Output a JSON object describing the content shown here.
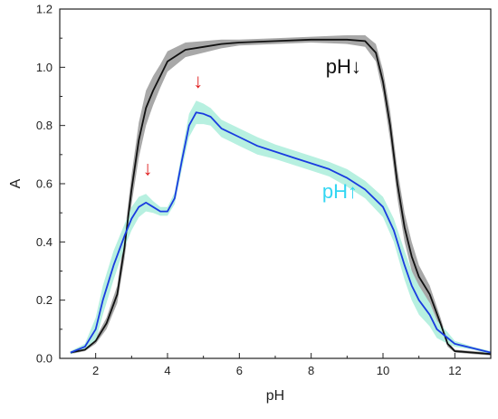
{
  "chart_data": {
    "type": "line",
    "title": "",
    "xlabel": "pH",
    "ylabel": "A",
    "xlim": [
      1.0,
      13.0
    ],
    "ylim": [
      0.0,
      1.2
    ],
    "xticks": [
      "2",
      "4",
      "6",
      "8",
      "10",
      "12"
    ],
    "xtick_values": [
      2,
      4,
      6,
      8,
      10,
      12
    ],
    "yticks": [
      "0.0",
      "0.2",
      "0.4",
      "0.6",
      "0.8",
      "1.0",
      "1.2"
    ],
    "ytick_values": [
      0.0,
      0.2,
      0.4,
      0.6,
      0.8,
      1.0,
      1.2
    ],
    "grid": false,
    "series": [
      {
        "label": "pH↓",
        "color": "#111111",
        "band_color": "#a8a8a8",
        "x": [
          1.3,
          1.7,
          2.0,
          2.3,
          2.6,
          2.8,
          3.0,
          3.2,
          3.4,
          3.6,
          3.8,
          4.0,
          4.5,
          5.0,
          5.5,
          6.0,
          7.0,
          8.0,
          9.0,
          9.5,
          9.8,
          10.0,
          10.2,
          10.4,
          10.6,
          10.8,
          11.0,
          11.3,
          11.6,
          11.8,
          12.0,
          12.5,
          13.0
        ],
        "y": [
          0.02,
          0.03,
          0.06,
          0.12,
          0.22,
          0.38,
          0.58,
          0.75,
          0.86,
          0.92,
          0.97,
          1.02,
          1.06,
          1.07,
          1.08,
          1.085,
          1.09,
          1.095,
          1.095,
          1.09,
          1.05,
          0.95,
          0.8,
          0.6,
          0.45,
          0.35,
          0.28,
          0.22,
          0.12,
          0.05,
          0.025,
          0.02,
          0.015
        ],
        "band": [
          0.005,
          0.005,
          0.01,
          0.02,
          0.03,
          0.04,
          0.05,
          0.06,
          0.06,
          0.05,
          0.04,
          0.035,
          0.025,
          0.02,
          0.015,
          0.01,
          0.01,
          0.01,
          0.015,
          0.02,
          0.03,
          0.04,
          0.05,
          0.05,
          0.05,
          0.05,
          0.04,
          0.03,
          0.02,
          0.01,
          0.005,
          0.005,
          0.005
        ]
      },
      {
        "label": "pH↑",
        "color": "#1a3ce0",
        "band_color": "#b7f0e0",
        "x": [
          1.3,
          1.7,
          2.0,
          2.2,
          2.5,
          2.8,
          3.0,
          3.2,
          3.4,
          3.6,
          3.8,
          4.0,
          4.2,
          4.4,
          4.6,
          4.8,
          5.0,
          5.2,
          5.5,
          6.0,
          6.5,
          7.0,
          7.5,
          8.0,
          8.5,
          9.0,
          9.5,
          10.0,
          10.3,
          10.6,
          10.8,
          11.0,
          11.3,
          11.5,
          11.8,
          12.0,
          12.5,
          13.0
        ],
        "y": [
          0.02,
          0.04,
          0.1,
          0.2,
          0.32,
          0.42,
          0.48,
          0.52,
          0.535,
          0.52,
          0.505,
          0.505,
          0.55,
          0.68,
          0.8,
          0.845,
          0.84,
          0.83,
          0.79,
          0.76,
          0.73,
          0.71,
          0.69,
          0.67,
          0.65,
          0.62,
          0.58,
          0.52,
          0.44,
          0.32,
          0.25,
          0.2,
          0.15,
          0.1,
          0.07,
          0.05,
          0.035,
          0.02
        ],
        "band": [
          0.005,
          0.01,
          0.04,
          0.05,
          0.05,
          0.04,
          0.04,
          0.035,
          0.03,
          0.02,
          0.015,
          0.015,
          0.02,
          0.03,
          0.04,
          0.04,
          0.035,
          0.03,
          0.03,
          0.03,
          0.03,
          0.025,
          0.025,
          0.025,
          0.025,
          0.03,
          0.03,
          0.035,
          0.04,
          0.05,
          0.05,
          0.05,
          0.04,
          0.03,
          0.02,
          0.01,
          0.005,
          0.005
        ]
      }
    ],
    "annotations": [
      {
        "text": "pH↓",
        "x": 8.9,
        "y": 0.98,
        "color": "#111111"
      },
      {
        "text": "pH↑",
        "x": 8.8,
        "y": 0.55,
        "color": "#33d6f2"
      }
    ],
    "markers": [
      {
        "symbol": "↓",
        "x": 3.45,
        "y": 0.63,
        "color": "#e01e1e"
      },
      {
        "symbol": "↓",
        "x": 4.85,
        "y": 0.93,
        "color": "#e01e1e"
      }
    ]
  }
}
